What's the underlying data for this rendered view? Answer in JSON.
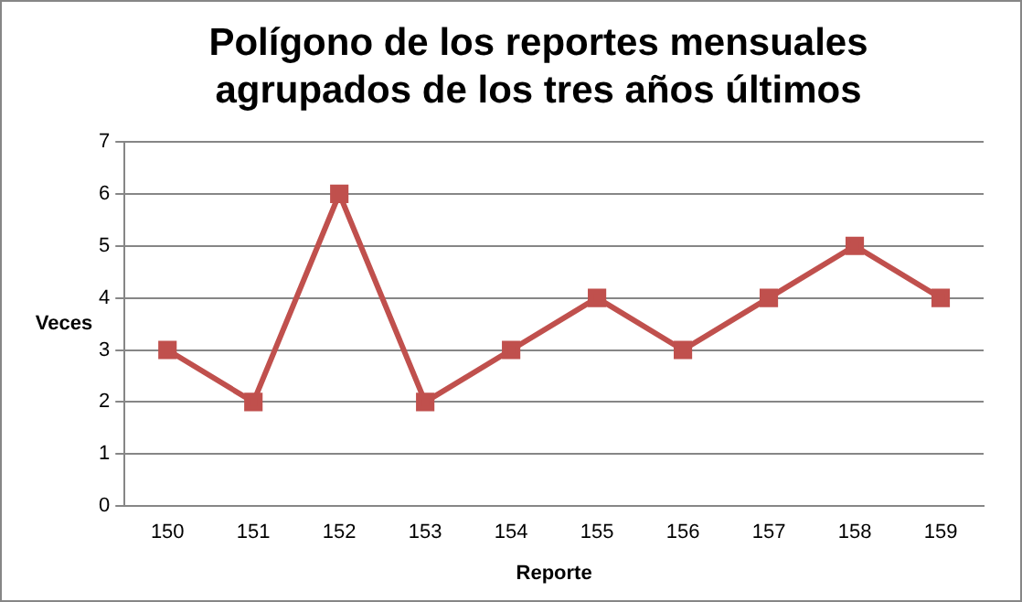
{
  "chart_data": {
    "type": "line",
    "title": "Polígono de los reportes mensuales agrupados de los tres años últimos",
    "xlabel": "Reporte",
    "ylabel": "Veces",
    "categories": [
      "150",
      "151",
      "152",
      "153",
      "154",
      "155",
      "156",
      "157",
      "158",
      "159"
    ],
    "series": [
      {
        "color": "#c0504d",
        "values": [
          3,
          2,
          6,
          2,
          3,
          4,
          3,
          4,
          5,
          4
        ]
      }
    ],
    "ylim": [
      0,
      7
    ],
    "yticks": [
      0,
      1,
      2,
      3,
      4,
      5,
      6,
      7
    ],
    "grid": "y",
    "legend": false,
    "marker": "square",
    "line_style": "solid"
  }
}
